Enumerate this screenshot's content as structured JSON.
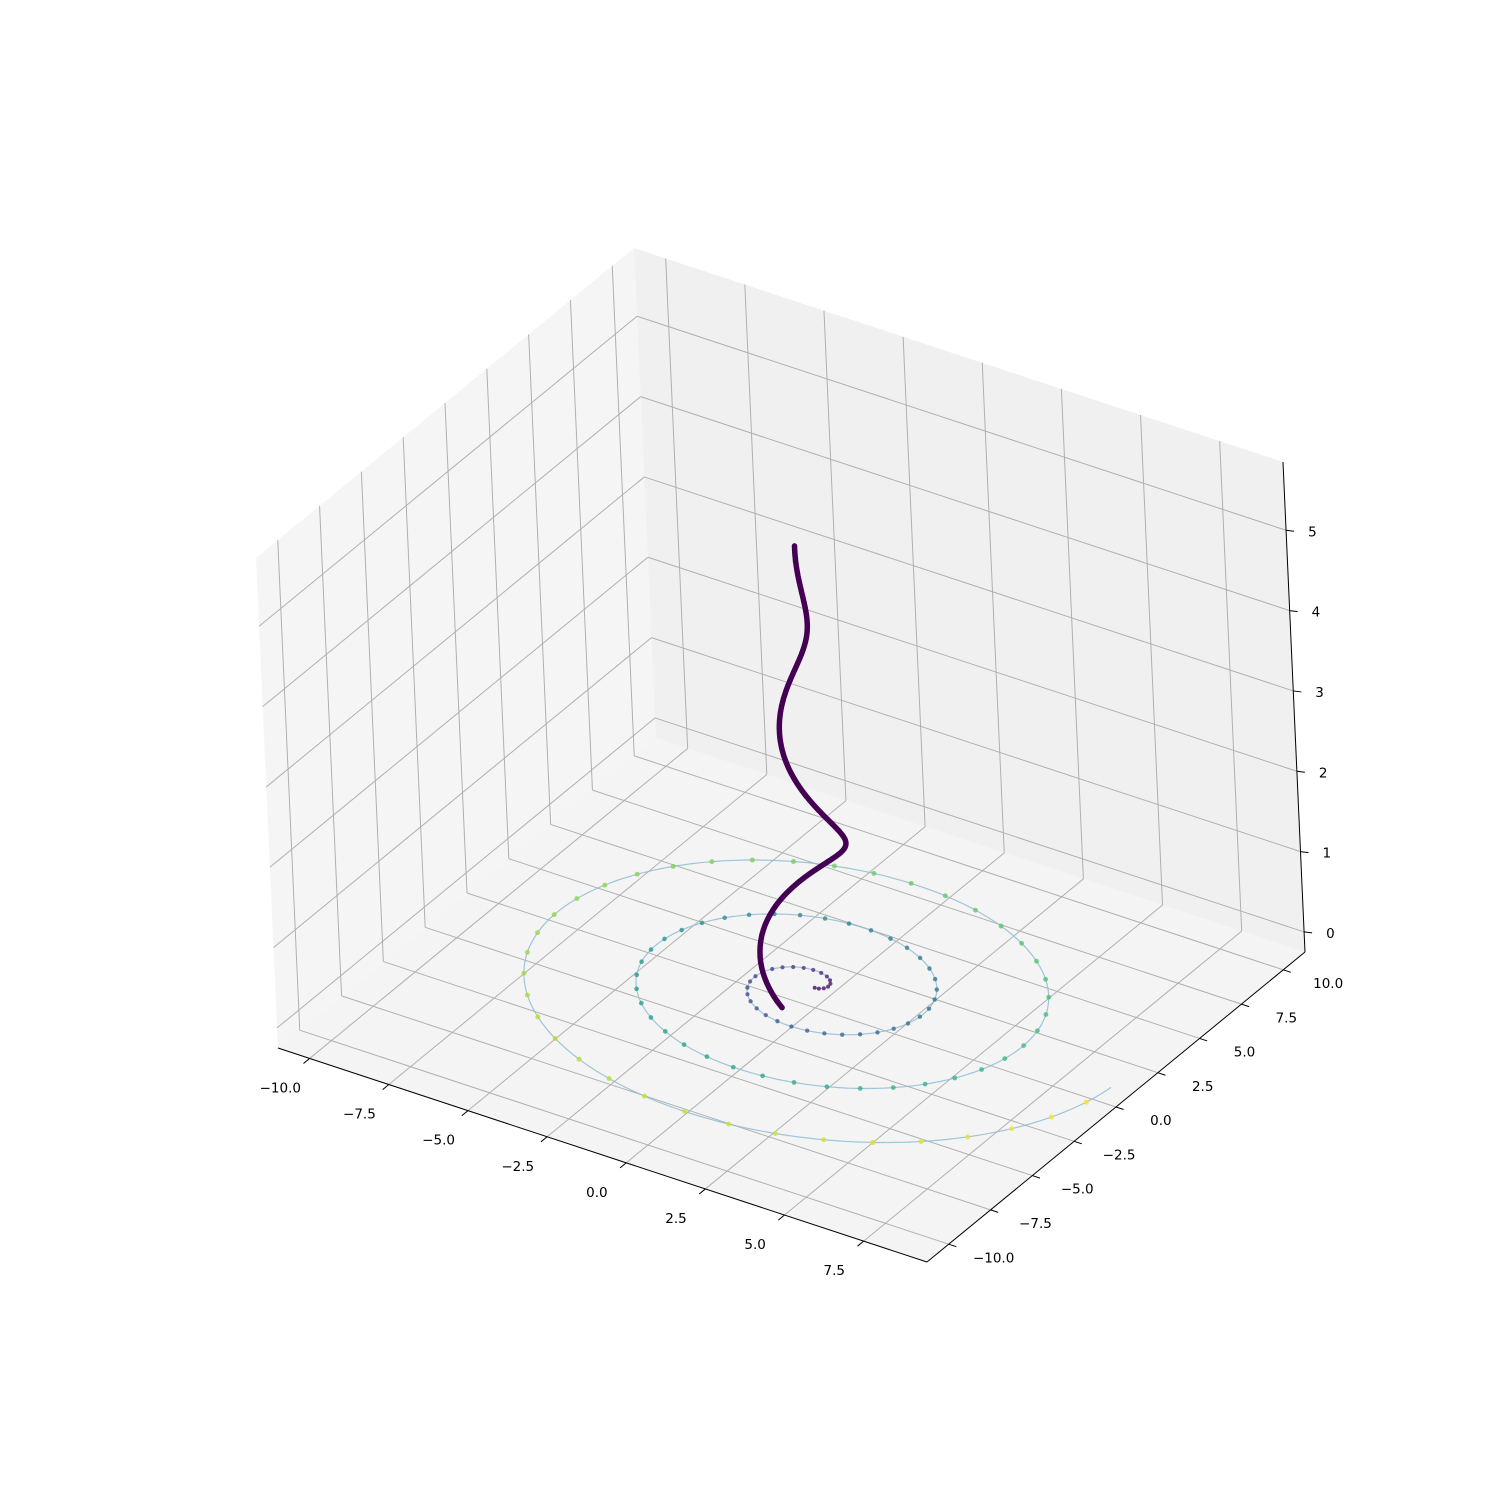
{
  "chart_data": {
    "type": "scatter",
    "projection": "3d",
    "grid": true,
    "legend": "none",
    "colormap": "viridis",
    "line_color": "#8fbcd4",
    "pane_colors": {
      "back": "#f0f0f0",
      "side": "#f5f5f5",
      "floor": "#f4f4f4"
    },
    "xlim": [
      -11.0,
      9.5
    ],
    "ylim": [
      -11.3,
      11.3
    ],
    "zlim": [
      -0.25,
      5.85
    ],
    "xticks": [
      -10.0,
      -7.5,
      -5.0,
      -2.5,
      0.0,
      2.5,
      5.0,
      7.5
    ],
    "yticks": [
      -10.0,
      -7.5,
      -5.0,
      -2.5,
      0.0,
      2.5,
      5.0,
      7.5,
      10.0
    ],
    "zticks": [
      0,
      1,
      2,
      3,
      4,
      5
    ],
    "xtick_labels": [
      "−10.0",
      "−7.5",
      "−5.0",
      "−2.5",
      "0.0",
      "2.5",
      "5.0",
      "7.5"
    ],
    "ytick_labels": [
      "−10.0",
      "−7.5",
      "−5.0",
      "−2.5",
      "0.0",
      "2.5",
      "5.0",
      "7.5",
      "10.0"
    ],
    "ztick_labels": [
      "0",
      "1",
      "2",
      "3",
      "4",
      "5"
    ],
    "series": [
      {
        "kind": "spiral-points",
        "description_of_shape": "Archimedean spiral in the z=0 plane, r = 0.5*theta, theta from 0 to 6*pi, points colored by radius (viridis)",
        "r_per_radian": 0.5,
        "theta_start": 0.0,
        "theta_end": 18.85,
        "z": 0
      },
      {
        "kind": "helix-line",
        "description_of_shape": "tapering curve rising from the spiral centre to z=5.5, r = 1.6*(1 - z/5.5), angle = 4.6 - 2.2*z",
        "z_start": 0.0,
        "z_end": 5.5,
        "r_start": 1.6,
        "color": "#440154"
      }
    ]
  }
}
